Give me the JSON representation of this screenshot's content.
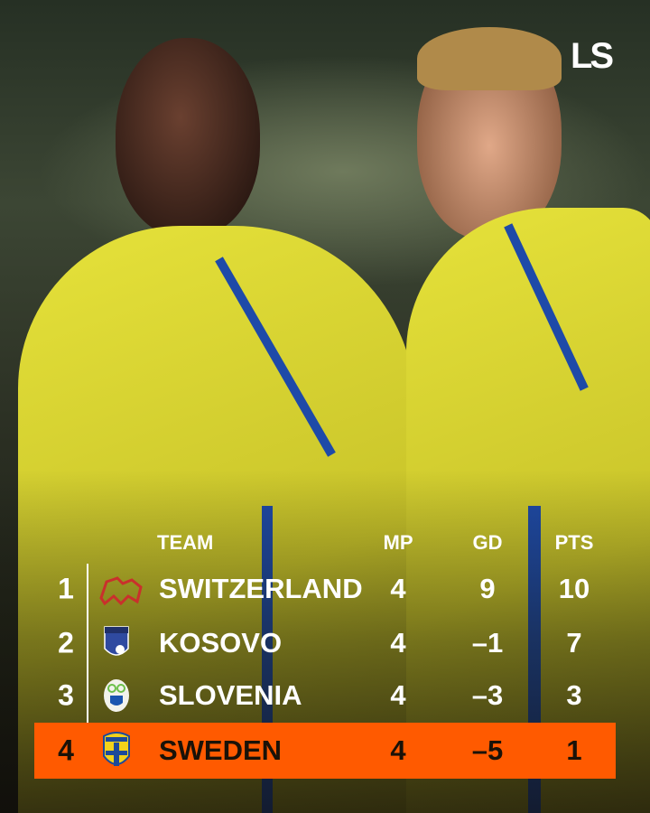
{
  "brand": {
    "logo_text": "LS"
  },
  "colors": {
    "highlight": "#ff5a00",
    "text": "#ffffff",
    "highlight_text": "#1a1208",
    "jersey": "#e6e23a"
  },
  "table": {
    "headers": {
      "team": "TEAM",
      "mp": "MP",
      "gd": "GD",
      "pts": "PTS"
    },
    "rows": [
      {
        "rank": "1",
        "crest": "switzerland-crest-icon",
        "team": "SWITZERLAND",
        "mp": "4",
        "gd": "9",
        "pts": "10"
      },
      {
        "rank": "2",
        "crest": "kosovo-crest-icon",
        "team": "KOSOVO",
        "mp": "4",
        "gd": "-1",
        "pts": "7"
      },
      {
        "rank": "3",
        "crest": "slovenia-crest-icon",
        "team": "SLOVENIA",
        "mp": "4",
        "gd": "-3",
        "pts": "3"
      },
      {
        "rank": "4",
        "crest": "sweden-crest-icon",
        "team": "SWEDEN",
        "mp": "4",
        "gd": "-5",
        "pts": "1",
        "highlighted": true
      }
    ]
  }
}
